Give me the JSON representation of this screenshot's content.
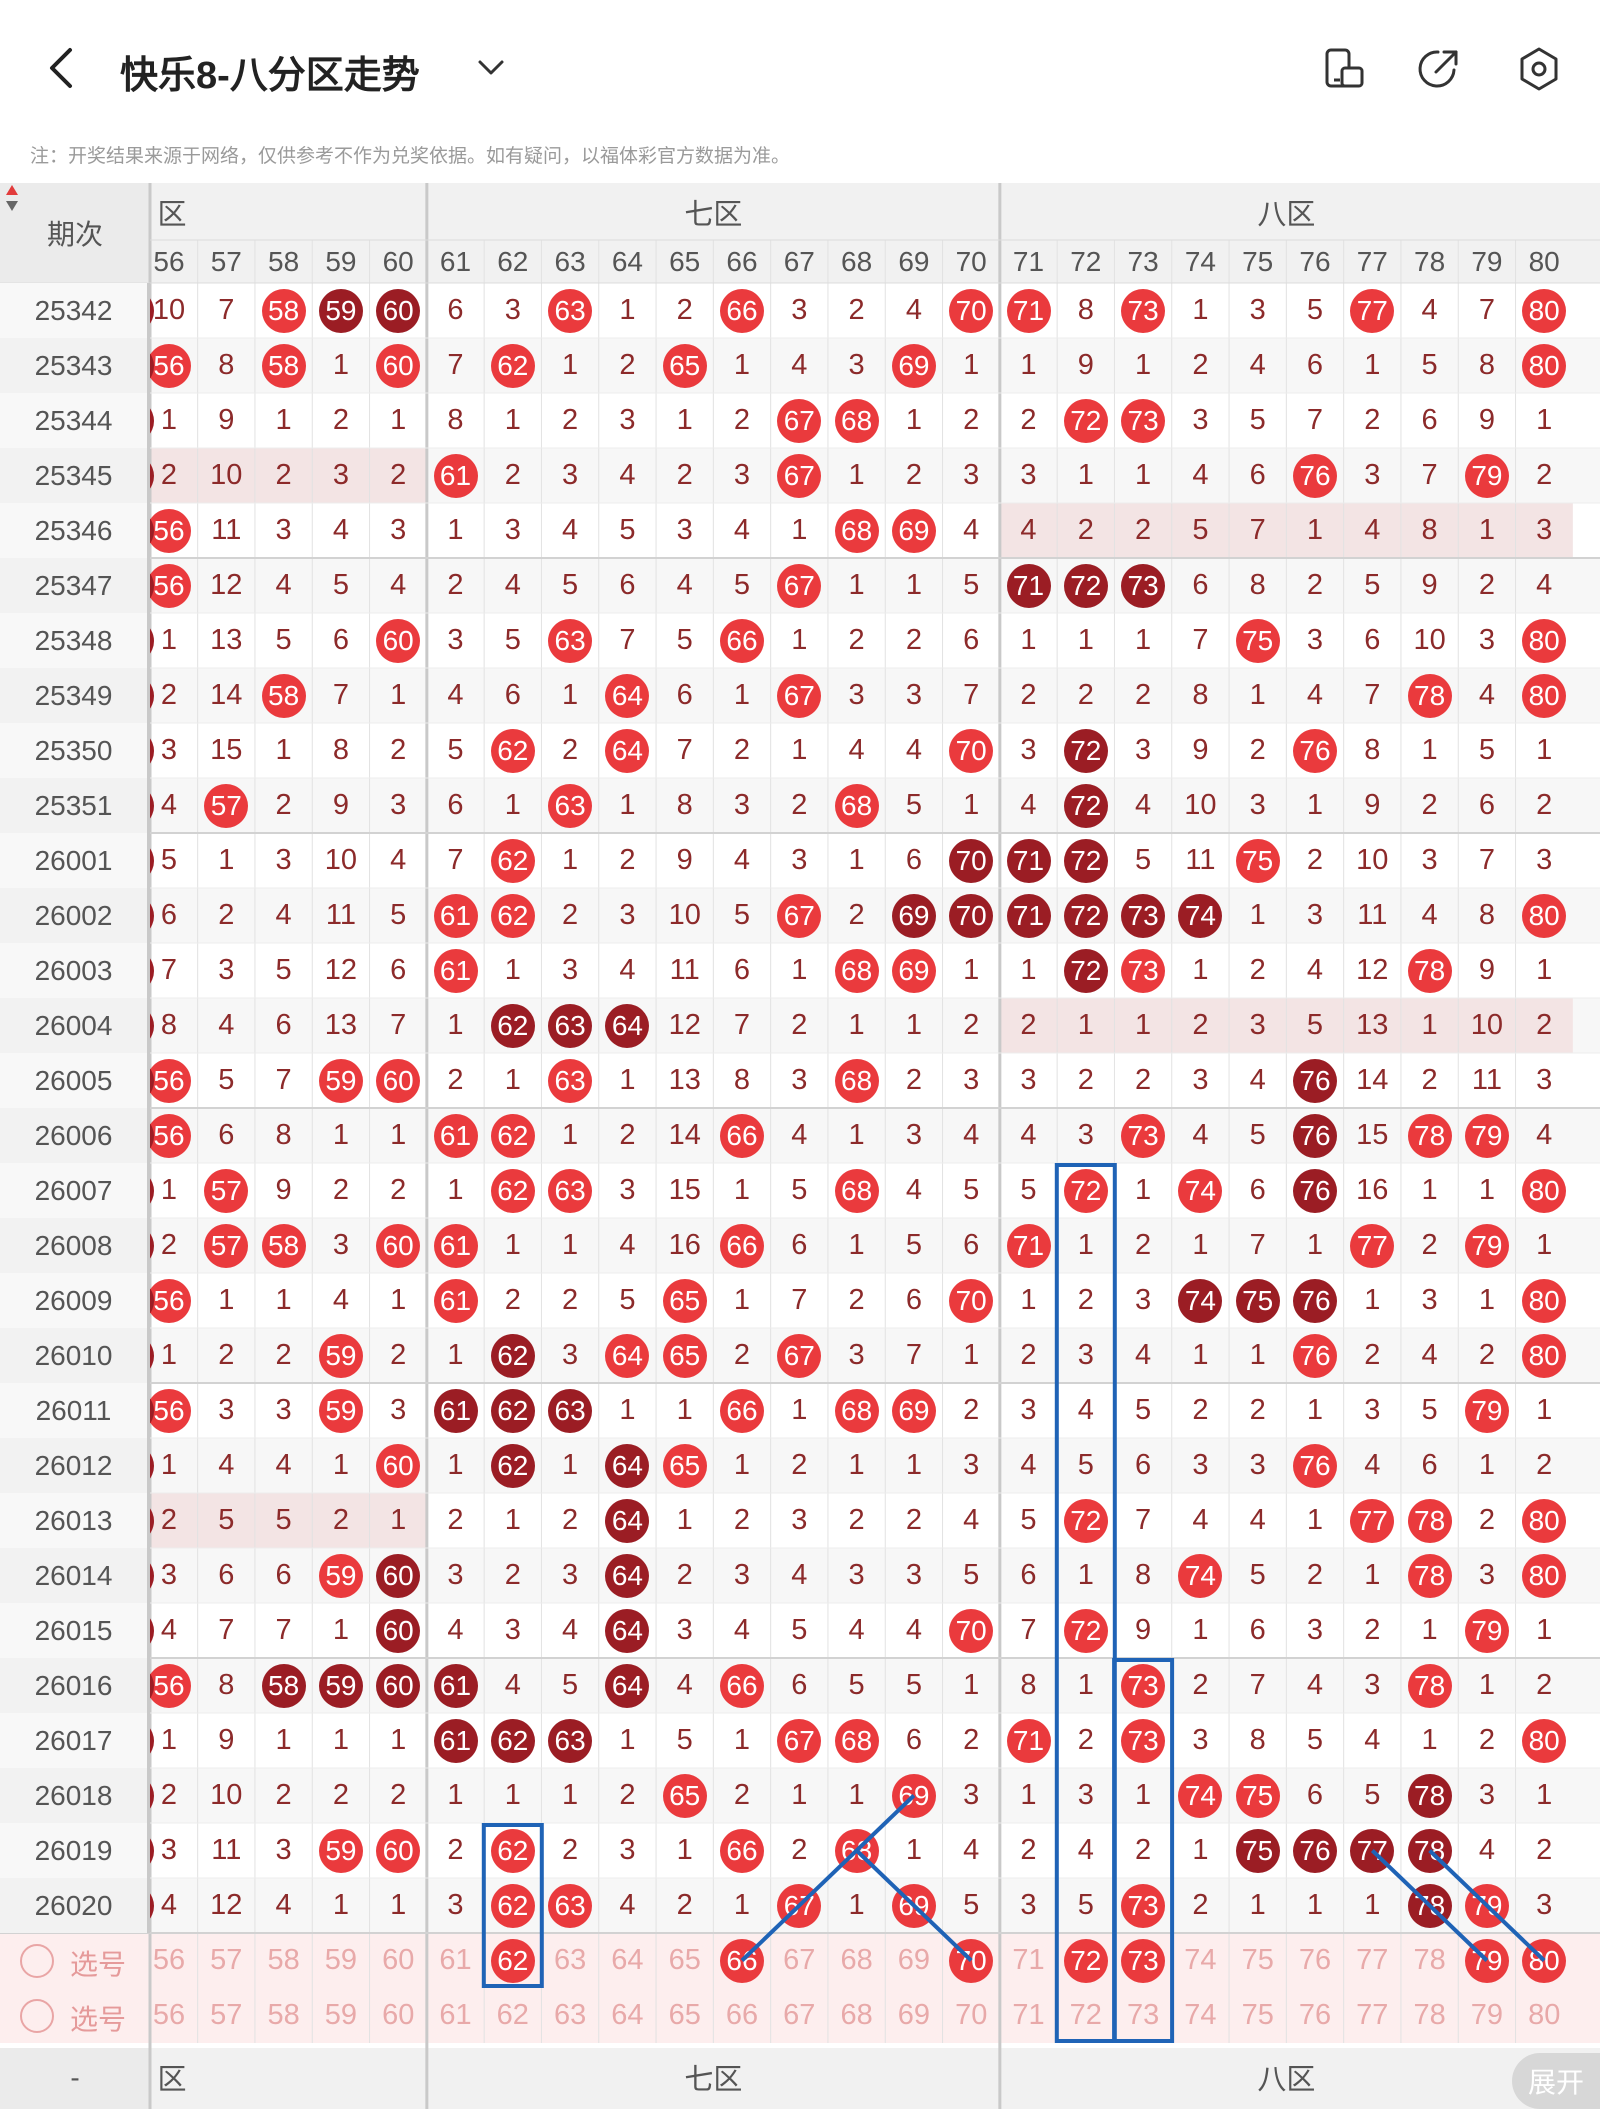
{
  "header": {
    "title": "快乐8-八分区走势",
    "back_icon": "back-arrow-icon",
    "icons": [
      "phone-layout-icon",
      "share-icon",
      "settings-icon"
    ]
  },
  "note": "注：开奖结果来源于网络，仅供参考不作为兑奖依据。如有疑问，以福体彩官方数据为准。",
  "table": {
    "period_header": "期次",
    "zones": [
      {
        "label": "六区",
        "cols": [
          56,
          57,
          58,
          59,
          60
        ]
      },
      {
        "label": "七区",
        "cols": [
          61,
          62,
          63,
          64,
          65,
          66,
          67,
          68,
          69,
          70
        ]
      },
      {
        "label": "八区",
        "cols": [
          71,
          72,
          73,
          74,
          75,
          76,
          77,
          78,
          79,
          80
        ]
      }
    ],
    "rows": [
      {
        "p": "25342",
        "v": [
          10,
          7,
          "R58",
          "D59",
          "D60",
          6,
          3,
          "R63",
          1,
          2,
          "R66",
          3,
          2,
          4,
          "R70",
          "R71",
          8,
          "R73",
          1,
          3,
          5,
          "R77",
          4,
          7,
          "R80"
        ]
      },
      {
        "p": "25343",
        "v": [
          "R56",
          8,
          "R58",
          1,
          "R60",
          7,
          "R62",
          1,
          2,
          "R65",
          1,
          4,
          3,
          "R69",
          1,
          1,
          9,
          1,
          2,
          4,
          6,
          1,
          5,
          8,
          "R80"
        ]
      },
      {
        "p": "25344",
        "v": [
          1,
          9,
          1,
          2,
          1,
          8,
          1,
          2,
          3,
          1,
          2,
          "R67",
          "R68",
          1,
          2,
          2,
          "R72",
          "R73",
          3,
          5,
          7,
          2,
          6,
          9,
          1
        ]
      },
      {
        "p": "25345",
        "v": [
          2,
          10,
          2,
          3,
          2,
          "R61",
          2,
          3,
          4,
          2,
          3,
          "R67",
          1,
          2,
          3,
          3,
          1,
          1,
          4,
          6,
          "R76",
          3,
          7,
          "R79",
          2
        ]
      },
      {
        "p": "25346",
        "v": [
          "R56",
          11,
          3,
          4,
          3,
          1,
          3,
          4,
          5,
          3,
          4,
          1,
          "R68",
          "R69",
          4,
          4,
          2,
          2,
          5,
          7,
          1,
          4,
          8,
          1,
          3
        ]
      },
      {
        "p": "25347",
        "v": [
          "R56",
          12,
          4,
          5,
          4,
          2,
          4,
          5,
          6,
          4,
          5,
          "R67",
          1,
          1,
          5,
          "D71",
          "D72",
          "D73",
          6,
          8,
          2,
          5,
          9,
          2,
          4
        ]
      },
      {
        "p": "25348",
        "v": [
          1,
          13,
          5,
          6,
          "R60",
          3,
          5,
          "R63",
          7,
          5,
          "R66",
          1,
          2,
          2,
          6,
          1,
          1,
          1,
          7,
          "R75",
          3,
          6,
          10,
          3,
          "R80"
        ]
      },
      {
        "p": "25349",
        "v": [
          2,
          14,
          "R58",
          7,
          1,
          4,
          6,
          1,
          "R64",
          6,
          1,
          "R67",
          3,
          3,
          7,
          2,
          2,
          2,
          8,
          1,
          4,
          7,
          "R78",
          4,
          "R80"
        ]
      },
      {
        "p": "25350",
        "v": [
          3,
          15,
          1,
          8,
          2,
          5,
          "R62",
          2,
          "R64",
          7,
          2,
          1,
          4,
          4,
          "R70",
          3,
          "D72",
          3,
          9,
          2,
          "R76",
          8,
          1,
          5,
          1
        ]
      },
      {
        "p": "25351",
        "v": [
          4,
          "R57",
          2,
          9,
          3,
          6,
          1,
          "R63",
          1,
          8,
          3,
          2,
          "R68",
          5,
          1,
          4,
          "D72",
          4,
          10,
          3,
          1,
          9,
          2,
          6,
          2
        ]
      },
      {
        "p": "26001",
        "v": [
          5,
          1,
          3,
          10,
          4,
          7,
          "R62",
          1,
          2,
          9,
          4,
          3,
          1,
          6,
          "D70",
          "D71",
          "D72",
          5,
          11,
          "R75",
          2,
          10,
          3,
          7,
          3
        ]
      },
      {
        "p": "26002",
        "v": [
          6,
          2,
          4,
          11,
          5,
          "R61",
          "R62",
          2,
          3,
          10,
          5,
          "R67",
          2,
          "D69",
          "D70",
          "D71",
          "D72",
          "D73",
          "D74",
          1,
          3,
          11,
          4,
          8,
          "R80"
        ]
      },
      {
        "p": "26003",
        "v": [
          7,
          3,
          5,
          12,
          6,
          "R61",
          1,
          3,
          4,
          11,
          6,
          1,
          "R68",
          "R69",
          1,
          1,
          "D72",
          "R73",
          1,
          2,
          4,
          12,
          "R78",
          9,
          1
        ]
      },
      {
        "p": "26004",
        "v": [
          8,
          4,
          6,
          13,
          7,
          1,
          "D62",
          "D63",
          "D64",
          12,
          7,
          2,
          1,
          1,
          2,
          2,
          1,
          1,
          2,
          3,
          5,
          13,
          1,
          10,
          2
        ]
      },
      {
        "p": "26005",
        "v": [
          "R56",
          5,
          7,
          "R59",
          "R60",
          2,
          1,
          "R63",
          1,
          13,
          8,
          3,
          "R68",
          2,
          3,
          3,
          2,
          2,
          3,
          4,
          "D76",
          14,
          2,
          11,
          3
        ]
      },
      {
        "p": "26006",
        "v": [
          "R56",
          6,
          8,
          1,
          1,
          "R61",
          "R62",
          1,
          2,
          14,
          "R66",
          4,
          1,
          3,
          4,
          4,
          3,
          "R73",
          4,
          5,
          "D76",
          15,
          "R78",
          "R79",
          4
        ]
      },
      {
        "p": "26007",
        "v": [
          1,
          "R57",
          9,
          2,
          2,
          1,
          "R62",
          "R63",
          3,
          15,
          1,
          5,
          "R68",
          4,
          5,
          5,
          "R72",
          1,
          "R74",
          6,
          "D76",
          16,
          1,
          1,
          "R80"
        ]
      },
      {
        "p": "26008",
        "v": [
          2,
          "R57",
          "R58",
          3,
          "R60",
          "R61",
          1,
          1,
          4,
          16,
          "R66",
          6,
          1,
          5,
          6,
          "R71",
          1,
          2,
          1,
          7,
          1,
          "R77",
          2,
          "R79",
          1
        ]
      },
      {
        "p": "26009",
        "v": [
          "R56",
          1,
          1,
          4,
          1,
          "R61",
          2,
          2,
          5,
          "R65",
          1,
          7,
          2,
          6,
          "R70",
          1,
          2,
          3,
          "D74",
          "D75",
          "D76",
          1,
          3,
          1,
          "R80"
        ]
      },
      {
        "p": "26010",
        "v": [
          1,
          2,
          2,
          "R59",
          2,
          1,
          "D62",
          3,
          "R64",
          "R65",
          2,
          "R67",
          3,
          7,
          1,
          2,
          3,
          4,
          1,
          1,
          "R76",
          2,
          4,
          2,
          "R80"
        ]
      },
      {
        "p": "26011",
        "v": [
          "R56",
          3,
          3,
          "R59",
          3,
          "D61",
          "D62",
          "D63",
          1,
          1,
          "R66",
          1,
          "R68",
          "R69",
          2,
          3,
          4,
          5,
          2,
          2,
          1,
          3,
          5,
          "R79",
          1
        ]
      },
      {
        "p": "26012",
        "v": [
          1,
          4,
          4,
          1,
          "R60",
          1,
          "D62",
          1,
          "D64",
          "R65",
          1,
          2,
          1,
          1,
          3,
          4,
          5,
          6,
          3,
          3,
          "R76",
          4,
          6,
          1,
          2
        ]
      },
      {
        "p": "26013",
        "v": [
          2,
          5,
          5,
          2,
          1,
          2,
          1,
          2,
          "D64",
          1,
          2,
          3,
          2,
          2,
          4,
          5,
          "R72",
          7,
          4,
          4,
          1,
          "R77",
          "R78",
          2,
          "R80"
        ]
      },
      {
        "p": "26014",
        "v": [
          3,
          6,
          6,
          "R59",
          "D60",
          3,
          2,
          3,
          "D64",
          2,
          3,
          4,
          3,
          3,
          5,
          6,
          1,
          8,
          "R74",
          5,
          2,
          1,
          "R78",
          3,
          "R80"
        ]
      },
      {
        "p": "26015",
        "v": [
          4,
          7,
          7,
          1,
          "D60",
          4,
          3,
          4,
          "D64",
          3,
          4,
          5,
          4,
          4,
          "R70",
          7,
          "R72",
          9,
          1,
          6,
          3,
          2,
          1,
          "R79",
          1
        ]
      },
      {
        "p": "26016",
        "v": [
          "R56",
          8,
          "D58",
          "D59",
          "D60",
          "D61",
          4,
          5,
          "D64",
          4,
          "R66",
          6,
          5,
          5,
          1,
          8,
          1,
          "R73",
          2,
          7,
          4,
          3,
          "R78",
          1,
          2
        ]
      },
      {
        "p": "26017",
        "v": [
          1,
          9,
          1,
          1,
          1,
          "D61",
          "D62",
          "D63",
          1,
          5,
          1,
          "R67",
          "R68",
          6,
          2,
          "R71",
          2,
          "R73",
          3,
          8,
          5,
          4,
          1,
          2,
          "R80"
        ]
      },
      {
        "p": "26018",
        "v": [
          2,
          10,
          2,
          2,
          2,
          1,
          1,
          1,
          2,
          "R65",
          2,
          1,
          1,
          "R69",
          3,
          1,
          3,
          1,
          "R74",
          "R75",
          6,
          5,
          "D78",
          3,
          1
        ]
      },
      {
        "p": "26019",
        "v": [
          3,
          11,
          3,
          "R59",
          "R60",
          2,
          "R62",
          2,
          3,
          1,
          "R66",
          2,
          "R68",
          1,
          4,
          2,
          4,
          2,
          1,
          "D75",
          "D76",
          "D77",
          "D78",
          4,
          2
        ]
      },
      {
        "p": "26020",
        "v": [
          4,
          12,
          4,
          1,
          1,
          3,
          "R62",
          "R63",
          4,
          2,
          1,
          "R67",
          1,
          "R69",
          5,
          3,
          5,
          "R73",
          2,
          1,
          1,
          1,
          "D78",
          "R79",
          3
        ]
      }
    ],
    "select_rows": [
      {
        "label": "选号",
        "balls": {
          "66": "R",
          "70": "R",
          "72": "R",
          "73": "R",
          "79": "R",
          "80": "R",
          "62": "R"
        }
      },
      {
        "label": "选号",
        "balls": {}
      }
    ]
  },
  "expand_label": "展开"
}
